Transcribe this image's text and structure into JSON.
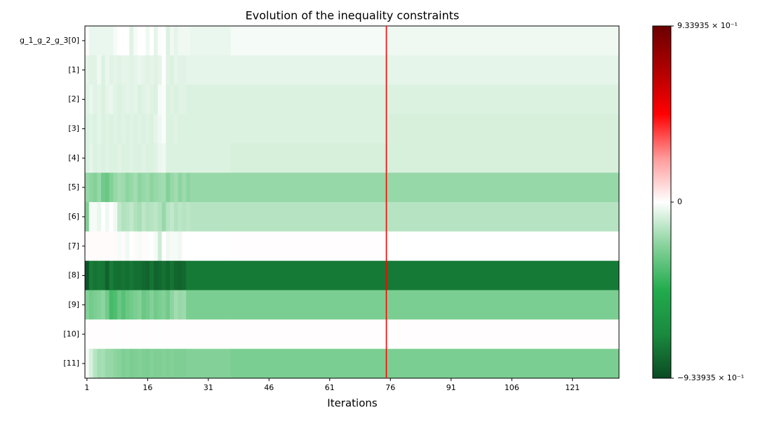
{
  "chart_data": {
    "type": "heatmap",
    "title": "Evolution of the inequality constraints",
    "x_label": "Iterations",
    "xlim": [
      0.5,
      132.5
    ],
    "xticks": [
      1,
      16,
      31,
      46,
      61,
      76,
      91,
      106,
      121
    ],
    "x_bins": [
      0.5,
      1.5,
      2.5,
      3.5,
      4.5,
      5.5,
      6.5,
      7.5,
      8.5,
      9.5,
      10.5,
      11.5,
      12.5,
      13.5,
      14.5,
      15.5,
      16.5,
      17.5,
      18.5,
      19.5,
      20.5,
      21.5,
      22.5,
      23.5,
      24.5,
      25.5,
      26.5,
      36.5,
      75.5,
      132.5
    ],
    "y_categories": [
      "g_1_g_2_g_3[0]",
      "[1]",
      "[2]",
      "[3]",
      "[4]",
      "[5]",
      "[6]",
      "[7]",
      "[8]",
      "[9]",
      "[10]",
      "[11]"
    ],
    "z": [
      [
        -0.01,
        -0.04,
        -0.04,
        -0.04,
        -0.04,
        -0.04,
        -0.04,
        -0.02,
        0,
        0,
        0,
        -0.06,
        -0.02,
        0,
        0,
        -0.03,
        0,
        -0.05,
        -0.01,
        0,
        -0.07,
        -0.03,
        -0.05,
        -0.03,
        -0.03,
        -0.03,
        -0.04,
        -0.02,
        -0.03
      ],
      [
        -0.05,
        -0.06,
        -0.06,
        -0.03,
        -0.07,
        -0.04,
        -0.06,
        -0.05,
        -0.06,
        -0.05,
        -0.05,
        -0.06,
        -0.05,
        -0.04,
        -0.05,
        -0.06,
        -0.05,
        -0.06,
        -0.05,
        0,
        -0.06,
        -0.07,
        -0.05,
        -0.06,
        -0.06,
        -0.05,
        -0.05,
        -0.05,
        -0.05
      ],
      [
        -0.06,
        -0.04,
        -0.06,
        -0.05,
        -0.07,
        -0.05,
        -0.04,
        -0.06,
        -0.07,
        -0.06,
        -0.05,
        -0.06,
        -0.05,
        -0.07,
        -0.06,
        -0.05,
        -0.06,
        -0.07,
        -0.02,
        -0.01,
        -0.07,
        -0.06,
        -0.07,
        -0.06,
        -0.06,
        -0.07,
        -0.07,
        -0.07,
        -0.07
      ],
      [
        -0.07,
        -0.06,
        -0.07,
        -0.05,
        -0.07,
        -0.06,
        -0.07,
        -0.06,
        -0.07,
        -0.06,
        -0.07,
        -0.06,
        -0.07,
        -0.06,
        -0.07,
        -0.06,
        -0.07,
        -0.05,
        -0.03,
        -0.01,
        -0.07,
        -0.07,
        -0.06,
        -0.07,
        -0.07,
        -0.07,
        -0.07,
        -0.07,
        -0.08
      ],
      [
        -0.07,
        -0.05,
        -0.07,
        -0.06,
        -0.07,
        -0.06,
        -0.07,
        -0.07,
        -0.06,
        -0.07,
        -0.07,
        -0.06,
        -0.07,
        -0.07,
        -0.06,
        -0.07,
        -0.07,
        -0.06,
        -0.04,
        -0.03,
        -0.07,
        -0.07,
        -0.07,
        -0.07,
        -0.07,
        -0.07,
        -0.07,
        -0.08,
        -0.08
      ],
      [
        -0.2,
        -0.22,
        -0.24,
        -0.2,
        -0.28,
        -0.3,
        -0.24,
        -0.2,
        -0.18,
        -0.19,
        -0.22,
        -0.2,
        -0.18,
        -0.22,
        -0.2,
        -0.19,
        -0.22,
        -0.2,
        -0.19,
        -0.18,
        -0.24,
        -0.2,
        -0.18,
        -0.22,
        -0.19,
        -0.22,
        -0.2,
        -0.2,
        -0.2
      ],
      [
        -0.25,
        -0.02,
        -0.02,
        -0.04,
        0,
        -0.03,
        0,
        -0.03,
        -0.12,
        -0.15,
        -0.14,
        -0.12,
        -0.15,
        -0.17,
        -0.13,
        -0.15,
        -0.14,
        -0.13,
        -0.15,
        -0.2,
        -0.14,
        -0.12,
        -0.15,
        -0.13,
        -0.14,
        -0.13,
        -0.14,
        -0.14,
        -0.14
      ],
      [
        0.01,
        0.01,
        0.01,
        0.01,
        0.01,
        0.01,
        0.01,
        0.01,
        -0.02,
        0.01,
        -0.03,
        0,
        0.01,
        -0.02,
        0.01,
        -0.01,
        0,
        -0.02,
        -0.1,
        0,
        -0.03,
        -0.02,
        -0.02,
        -0.03,
        0,
        0,
        0,
        0.005,
        0
      ],
      [
        -0.9,
        -0.75,
        -0.78,
        -0.76,
        -0.77,
        -0.85,
        -0.75,
        -0.79,
        -0.8,
        -0.78,
        -0.8,
        -0.77,
        -0.8,
        -0.8,
        -0.82,
        -0.84,
        -0.78,
        -0.84,
        -0.82,
        -0.79,
        -0.83,
        -0.78,
        -0.83,
        -0.84,
        -0.82,
        -0.76,
        -0.76,
        -0.76,
        -0.76
      ],
      [
        -0.24,
        -0.28,
        -0.26,
        -0.24,
        -0.22,
        -0.28,
        -0.38,
        -0.36,
        -0.3,
        -0.34,
        -0.3,
        -0.28,
        -0.26,
        -0.24,
        -0.3,
        -0.28,
        -0.24,
        -0.28,
        -0.26,
        -0.24,
        -0.28,
        -0.22,
        -0.18,
        -0.2,
        -0.19,
        -0.26,
        -0.26,
        -0.26,
        -0.26
      ],
      [
        0.005,
        0.005,
        0.005,
        0.005,
        0.005,
        0.005,
        0.005,
        0.005,
        0,
        0.005,
        0,
        0.005,
        0.005,
        0,
        0.005,
        0,
        0.005,
        0.005,
        0,
        0.005,
        0.005,
        0.005,
        0.005,
        0.005,
        0.005,
        0.005,
        0.005,
        0.005,
        0.005
      ],
      [
        -0.02,
        -0.08,
        -0.14,
        -0.18,
        -0.17,
        -0.2,
        -0.2,
        -0.22,
        -0.23,
        -0.25,
        -0.24,
        -0.26,
        -0.25,
        -0.24,
        -0.25,
        -0.26,
        -0.24,
        -0.25,
        -0.25,
        -0.24,
        -0.25,
        -0.24,
        -0.25,
        -0.25,
        -0.25,
        -0.24,
        -0.24,
        -0.26,
        -0.26
      ]
    ],
    "zlim": [
      -0.933935,
      0.933935
    ],
    "zticks": [
      {
        "value": -0.933935,
        "label": "−9.33935 × 10⁻¹"
      },
      0,
      {
        "value": 0.933935,
        "label": "9.33935 × 10⁻¹"
      }
    ],
    "colormap": [
      "#0b4a22",
      "#1a8a3e",
      "#22ab4d",
      "#86d29a",
      "#ffffff",
      "#ff9999",
      "#ff0000",
      "#b00000",
      "#6b0000"
    ],
    "vline": {
      "x": 75,
      "color": "#ff0000"
    }
  }
}
